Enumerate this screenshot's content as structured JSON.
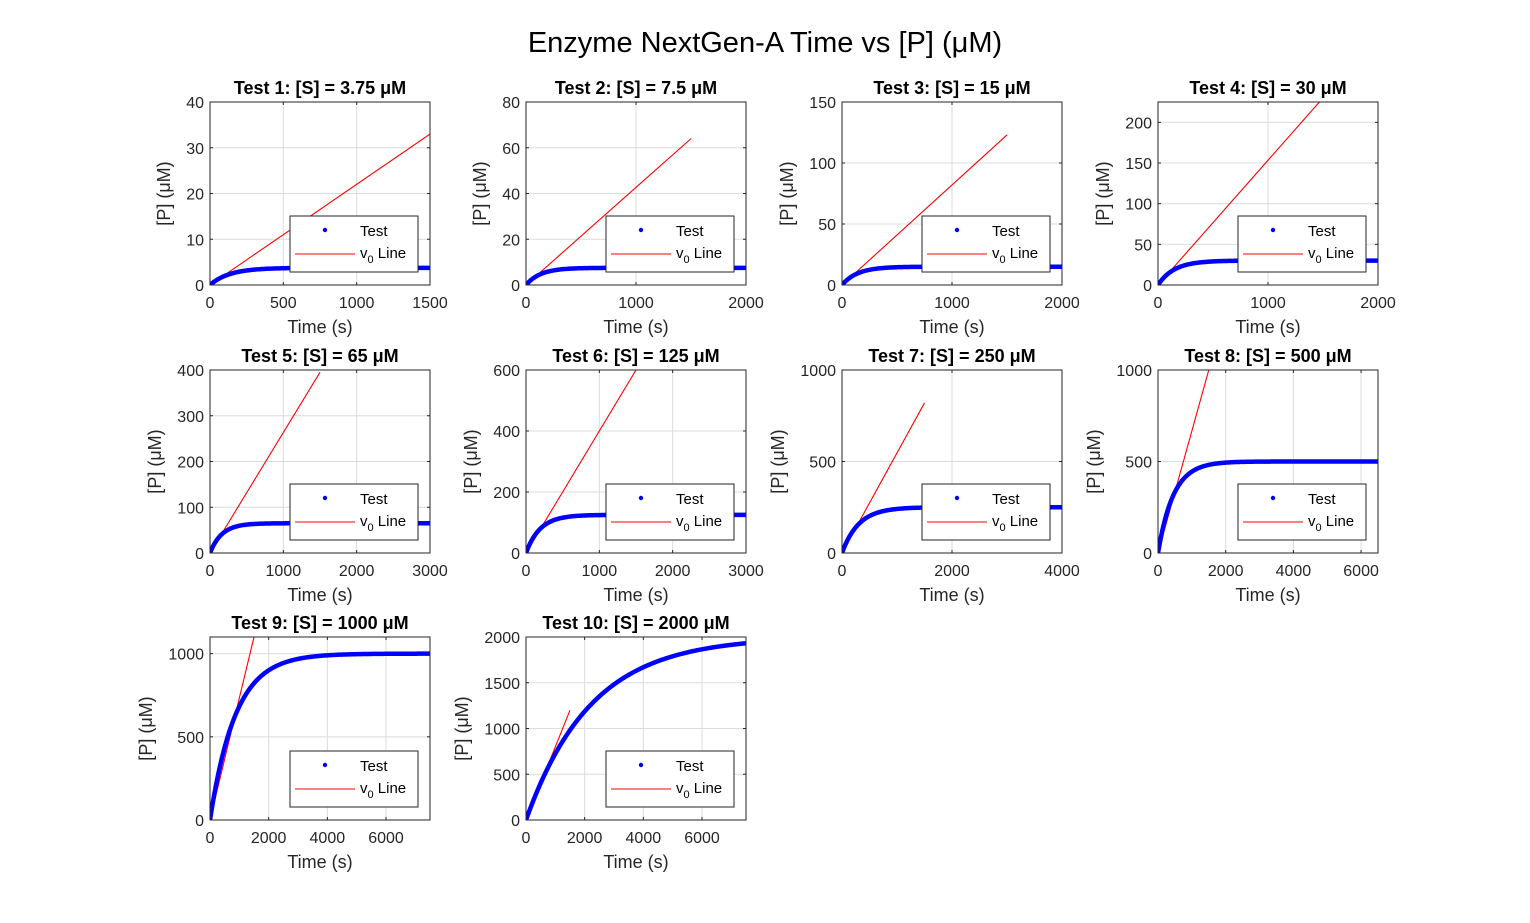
{
  "figure": {
    "title": "Enzyme NextGen-A Time vs [P] (μM)"
  },
  "legend": {
    "series_label": "Test",
    "line_label_main": "v",
    "line_label_sub": "0",
    "line_label_rest": " Line"
  },
  "colors": {
    "series": "#0000ff",
    "v0_line": "#ff0000",
    "grid": "#dcdcdc",
    "axis": "#262626"
  },
  "chart_data": [
    {
      "type": "line",
      "title": "Test 1: [S] = 3.75 μM",
      "xlabel": "Time (s)",
      "ylabel": "[P] (μM)",
      "xlim": [
        0,
        1500
      ],
      "ylim": [
        0,
        40
      ],
      "xticks": [
        0,
        500,
        1000,
        1500
      ],
      "yticks": [
        0,
        10,
        20,
        30,
        40
      ],
      "grid": true,
      "legend_position": "bottom-right",
      "series": [
        {
          "name": "Test",
          "plateau": 3.75,
          "rate": 0.0075,
          "t_end": 1500
        },
        {
          "name": "v0 Line",
          "x": [
            0,
            1500
          ],
          "y": [
            0,
            33
          ]
        }
      ]
    },
    {
      "type": "line",
      "title": "Test 2: [S] = 7.5 μM",
      "xlabel": "Time (s)",
      "ylabel": "[P] (μM)",
      "xlim": [
        0,
        2000
      ],
      "ylim": [
        0,
        80
      ],
      "xticks": [
        0,
        1000,
        2000
      ],
      "yticks": [
        0,
        20,
        40,
        60,
        80
      ],
      "grid": true,
      "legend_position": "bottom-right",
      "series": [
        {
          "name": "Test",
          "plateau": 7.5,
          "rate": 0.0076,
          "t_end": 2000
        },
        {
          "name": "v0 Line",
          "x": [
            0,
            1500
          ],
          "y": [
            0,
            64
          ]
        }
      ]
    },
    {
      "type": "line",
      "title": "Test 3: [S] = 15 μM",
      "xlabel": "Time (s)",
      "ylabel": "[P] (μM)",
      "xlim": [
        0,
        2000
      ],
      "ylim": [
        0,
        150
      ],
      "xticks": [
        0,
        1000,
        2000
      ],
      "yticks": [
        0,
        50,
        100,
        150
      ],
      "grid": true,
      "legend_position": "bottom-right",
      "series": [
        {
          "name": "Test",
          "plateau": 15,
          "rate": 0.0071,
          "t_end": 2000
        },
        {
          "name": "v0 Line",
          "x": [
            0,
            1500
          ],
          "y": [
            0,
            123
          ]
        }
      ]
    },
    {
      "type": "line",
      "title": "Test 4: [S] = 30 μM",
      "xlabel": "Time (s)",
      "ylabel": "[P] (μM)",
      "xlim": [
        0,
        2000
      ],
      "ylim": [
        0,
        225
      ],
      "xticks": [
        0,
        1000,
        2000
      ],
      "yticks": [
        0,
        50,
        100,
        150,
        200
      ],
      "grid": true,
      "legend_position": "bottom-right",
      "series": [
        {
          "name": "Test",
          "plateau": 30,
          "rate": 0.0068,
          "t_end": 2000
        },
        {
          "name": "v0 Line",
          "x": [
            0,
            1500
          ],
          "y": [
            0,
            230
          ]
        }
      ]
    },
    {
      "type": "line",
      "title": "Test 5: [S] = 65 μM",
      "xlabel": "Time (s)",
      "ylabel": "[P] (μM)",
      "xlim": [
        0,
        3000
      ],
      "ylim": [
        0,
        400
      ],
      "xticks": [
        0,
        1000,
        2000,
        3000
      ],
      "yticks": [
        0,
        100,
        200,
        300,
        400
      ],
      "grid": true,
      "legend_position": "bottom-right",
      "series": [
        {
          "name": "Test",
          "plateau": 65,
          "rate": 0.0062,
          "t_end": 3000
        },
        {
          "name": "v0 Line",
          "x": [
            0,
            1500
          ],
          "y": [
            0,
            395
          ]
        }
      ]
    },
    {
      "type": "line",
      "title": "Test 6: [S] = 125 μM",
      "xlabel": "Time (s)",
      "ylabel": "[P] (μM)",
      "xlim": [
        0,
        3000
      ],
      "ylim": [
        0,
        600
      ],
      "xticks": [
        0,
        1000,
        2000,
        3000
      ],
      "yticks": [
        0,
        200,
        400,
        600
      ],
      "grid": true,
      "legend_position": "bottom-right",
      "series": [
        {
          "name": "Test",
          "plateau": 125,
          "rate": 0.0052,
          "t_end": 3000
        },
        {
          "name": "v0 Line",
          "x": [
            0,
            1500
          ],
          "y": [
            0,
            600
          ]
        }
      ]
    },
    {
      "type": "line",
      "title": "Test 7: [S] = 250 μM",
      "xlabel": "Time (s)",
      "ylabel": "[P] (μM)",
      "xlim": [
        0,
        4000
      ],
      "ylim": [
        0,
        1000
      ],
      "xticks": [
        0,
        2000,
        4000
      ],
      "yticks": [
        0,
        500,
        1000
      ],
      "grid": true,
      "legend_position": "bottom-right",
      "series": [
        {
          "name": "Test",
          "plateau": 250,
          "rate": 0.0033,
          "t_end": 4000
        },
        {
          "name": "v0 Line",
          "x": [
            0,
            1500
          ],
          "y": [
            0,
            820
          ]
        }
      ]
    },
    {
      "type": "line",
      "title": "Test 8: [S] = 500 μM",
      "xlabel": "Time (s)",
      "ylabel": "[P] (μM)",
      "xlim": [
        0,
        6500
      ],
      "ylim": [
        0,
        1000
      ],
      "xticks": [
        0,
        2000,
        4000,
        6000
      ],
      "yticks": [
        0,
        500,
        1000
      ],
      "grid": true,
      "legend_position": "bottom-right",
      "series": [
        {
          "name": "Test",
          "plateau": 500,
          "rate": 0.0022,
          "t_end": 6500
        },
        {
          "name": "v0 Line",
          "x": [
            0,
            1500
          ],
          "y": [
            0,
            1000
          ]
        }
      ]
    },
    {
      "type": "line",
      "title": "Test 9: [S] = 1000 μM",
      "xlabel": "Time (s)",
      "ylabel": "[P] (μM)",
      "xlim": [
        0,
        7500
      ],
      "ylim": [
        0,
        1100
      ],
      "xticks": [
        0,
        2000,
        4000,
        6000
      ],
      "yticks": [
        0,
        500,
        1000
      ],
      "grid": true,
      "legend_position": "bottom-right",
      "series": [
        {
          "name": "Test",
          "plateau": 1000,
          "rate": 0.00115,
          "t_end": 7500
        },
        {
          "name": "v0 Line",
          "x": [
            0,
            1500
          ],
          "y": [
            0,
            1100
          ]
        }
      ]
    },
    {
      "type": "line",
      "title": "Test 10: [S] = 2000 μM",
      "xlabel": "Time (s)",
      "ylabel": "[P] (μM)",
      "xlim": [
        0,
        7500
      ],
      "ylim": [
        0,
        2000
      ],
      "xticks": [
        0,
        2000,
        4000,
        6000
      ],
      "yticks": [
        0,
        500,
        1000,
        1500,
        2000
      ],
      "grid": true,
      "legend_position": "bottom-right",
      "series": [
        {
          "name": "Test",
          "plateau": 2000,
          "rate": 0.00045,
          "t_end": 7500
        },
        {
          "name": "v0 Line",
          "x": [
            0,
            1500
          ],
          "y": [
            0,
            1200
          ]
        }
      ]
    }
  ]
}
